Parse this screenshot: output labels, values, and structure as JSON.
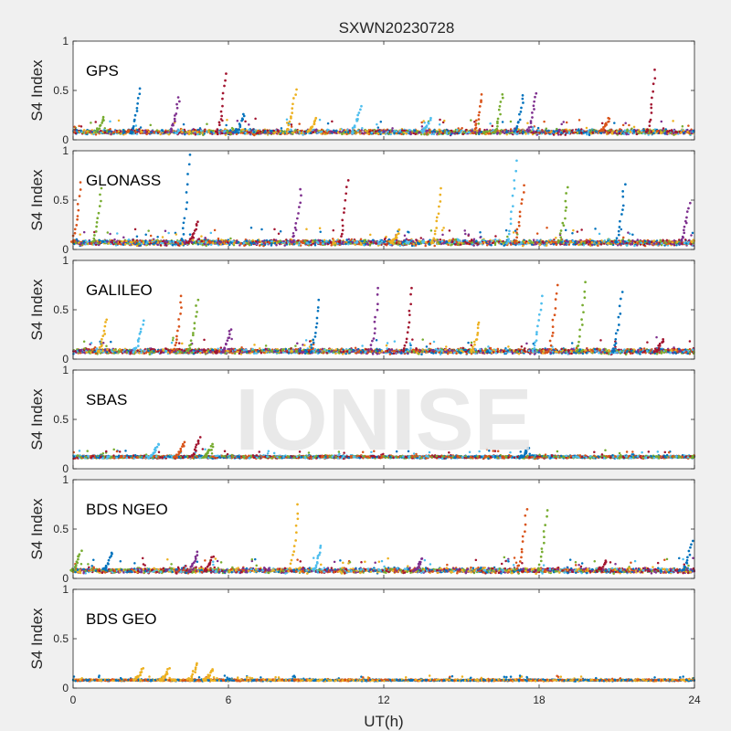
{
  "figure": {
    "title": "SXWN20230728",
    "xlabel": "UT(h)",
    "ylabel": "S4 Index",
    "watermark": "IONISE",
    "background_color": "#f0f0f0",
    "axes_color": "#ffffff",
    "text_color": "#262626",
    "watermark_color": "#e6e6e6"
  },
  "chart_data": [
    {
      "type": "scatter",
      "label": "GPS",
      "xlim": [
        0,
        24
      ],
      "ylim": [
        0,
        1
      ],
      "xticks": [
        0,
        6,
        12,
        18,
        24
      ],
      "yticks": [
        0,
        0.5,
        1
      ],
      "ytick_labels": [
        "0",
        "0.5",
        "1"
      ],
      "baseline": 0.08,
      "noise": 0.035,
      "series_colors": [
        "#0072BD",
        "#D95319",
        "#EDB120",
        "#7E2F8E",
        "#77AC30",
        "#4DBEEE",
        "#A2142F"
      ],
      "peaks": [
        [
          2.6,
          0.52
        ],
        [
          4.1,
          0.43
        ],
        [
          5.9,
          0.67
        ],
        [
          8.6,
          0.51
        ],
        [
          11.1,
          0.34
        ],
        [
          15.8,
          0.46
        ],
        [
          16.6,
          0.46
        ],
        [
          17.4,
          0.45
        ],
        [
          17.9,
          0.47
        ],
        [
          22.5,
          0.71
        ],
        [
          9.4,
          0.22
        ],
        [
          13.8,
          0.22
        ],
        [
          20.7,
          0.22
        ],
        [
          1.2,
          0.23
        ],
        [
          6.6,
          0.26
        ]
      ]
    },
    {
      "type": "scatter",
      "label": "GLONASS",
      "xlim": [
        0,
        24
      ],
      "ylim": [
        0,
        1
      ],
      "xticks": [
        0,
        6,
        12,
        18,
        24
      ],
      "yticks": [
        0,
        0.5,
        1
      ],
      "ytick_labels": [
        "0",
        "0.5",
        "1"
      ],
      "baseline": 0.07,
      "noise": 0.04,
      "series_colors": [
        "#0072BD",
        "#D95319",
        "#EDB120",
        "#7E2F8E",
        "#77AC30",
        "#4DBEEE",
        "#A2142F"
      ],
      "peaks": [
        [
          0.3,
          0.68
        ],
        [
          1.1,
          0.62
        ],
        [
          4.5,
          0.96
        ],
        [
          8.8,
          0.61
        ],
        [
          10.6,
          0.7
        ],
        [
          14.2,
          0.62
        ],
        [
          17.1,
          0.9
        ],
        [
          17.4,
          0.65
        ],
        [
          19.1,
          0.63
        ],
        [
          21.3,
          0.66
        ],
        [
          23.8,
          0.47
        ],
        [
          4.8,
          0.28
        ],
        [
          12.6,
          0.2
        ]
      ]
    },
    {
      "type": "scatter",
      "label": "GALILEO",
      "xlim": [
        0,
        24
      ],
      "ylim": [
        0,
        1
      ],
      "xticks": [
        0,
        6,
        12,
        18,
        24
      ],
      "yticks": [
        0,
        0.5,
        1
      ],
      "ytick_labels": [
        "0",
        "0.5",
        "1"
      ],
      "baseline": 0.08,
      "noise": 0.035,
      "series_colors": [
        "#0072BD",
        "#D95319",
        "#EDB120",
        "#7E2F8E",
        "#77AC30",
        "#4DBEEE",
        "#A2142F"
      ],
      "peaks": [
        [
          1.3,
          0.4
        ],
        [
          2.7,
          0.39
        ],
        [
          4.2,
          0.64
        ],
        [
          4.8,
          0.6
        ],
        [
          9.5,
          0.6
        ],
        [
          11.8,
          0.72
        ],
        [
          13.1,
          0.72
        ],
        [
          15.7,
          0.37
        ],
        [
          18.1,
          0.64
        ],
        [
          18.7,
          0.75
        ],
        [
          19.8,
          0.78
        ],
        [
          21.2,
          0.68
        ],
        [
          6.1,
          0.3
        ],
        [
          22.8,
          0.2
        ]
      ]
    },
    {
      "type": "scatter",
      "label": "SBAS",
      "xlim": [
        0,
        24
      ],
      "ylim": [
        0,
        1
      ],
      "xticks": [
        0,
        6,
        12,
        18,
        24
      ],
      "yticks": [
        0,
        0.5,
        1
      ],
      "ytick_labels": [
        "0",
        "0.5",
        "1"
      ],
      "baseline": 0.12,
      "noise": 0.02,
      "series_colors": [
        "#0072BD",
        "#D95319",
        "#77AC30",
        "#4DBEEE",
        "#A2142F"
      ],
      "peaks": [
        [
          3.3,
          0.25
        ],
        [
          4.3,
          0.27
        ],
        [
          4.9,
          0.32
        ],
        [
          5.4,
          0.25
        ],
        [
          17.6,
          0.21
        ]
      ]
    },
    {
      "type": "scatter",
      "label": "BDS NGEO",
      "xlim": [
        0,
        24
      ],
      "ylim": [
        0,
        1
      ],
      "xticks": [
        0,
        6,
        12,
        18,
        24
      ],
      "yticks": [
        0,
        0.5,
        1
      ],
      "ytick_labels": [
        "0",
        "0.5",
        "1"
      ],
      "baseline": 0.08,
      "noise": 0.035,
      "series_colors": [
        "#0072BD",
        "#D95319",
        "#EDB120",
        "#7E2F8E",
        "#77AC30",
        "#4DBEEE",
        "#A2142F"
      ],
      "peaks": [
        [
          0.3,
          0.28
        ],
        [
          1.5,
          0.26
        ],
        [
          4.8,
          0.27
        ],
        [
          5.4,
          0.22
        ],
        [
          8.7,
          0.75
        ],
        [
          9.6,
          0.33
        ],
        [
          17.5,
          0.7
        ],
        [
          18.3,
          0.69
        ],
        [
          23.9,
          0.38
        ],
        [
          13.5,
          0.2
        ],
        [
          20.6,
          0.18
        ]
      ]
    },
    {
      "type": "scatter",
      "label": "BDS GEO",
      "xlim": [
        0,
        24
      ],
      "ylim": [
        0,
        1
      ],
      "xticks": [
        0,
        6,
        12,
        18,
        24
      ],
      "yticks": [
        0,
        0.5,
        1
      ],
      "ytick_labels": [
        "0",
        "0.5",
        "1"
      ],
      "baseline": 0.08,
      "noise": 0.012,
      "series_colors": [
        "#0072BD",
        "#D95319",
        "#EDB120"
      ],
      "peaks": [
        [
          2.7,
          0.2
        ],
        [
          3.7,
          0.2
        ],
        [
          4.8,
          0.25
        ],
        [
          5.4,
          0.19
        ]
      ]
    }
  ]
}
